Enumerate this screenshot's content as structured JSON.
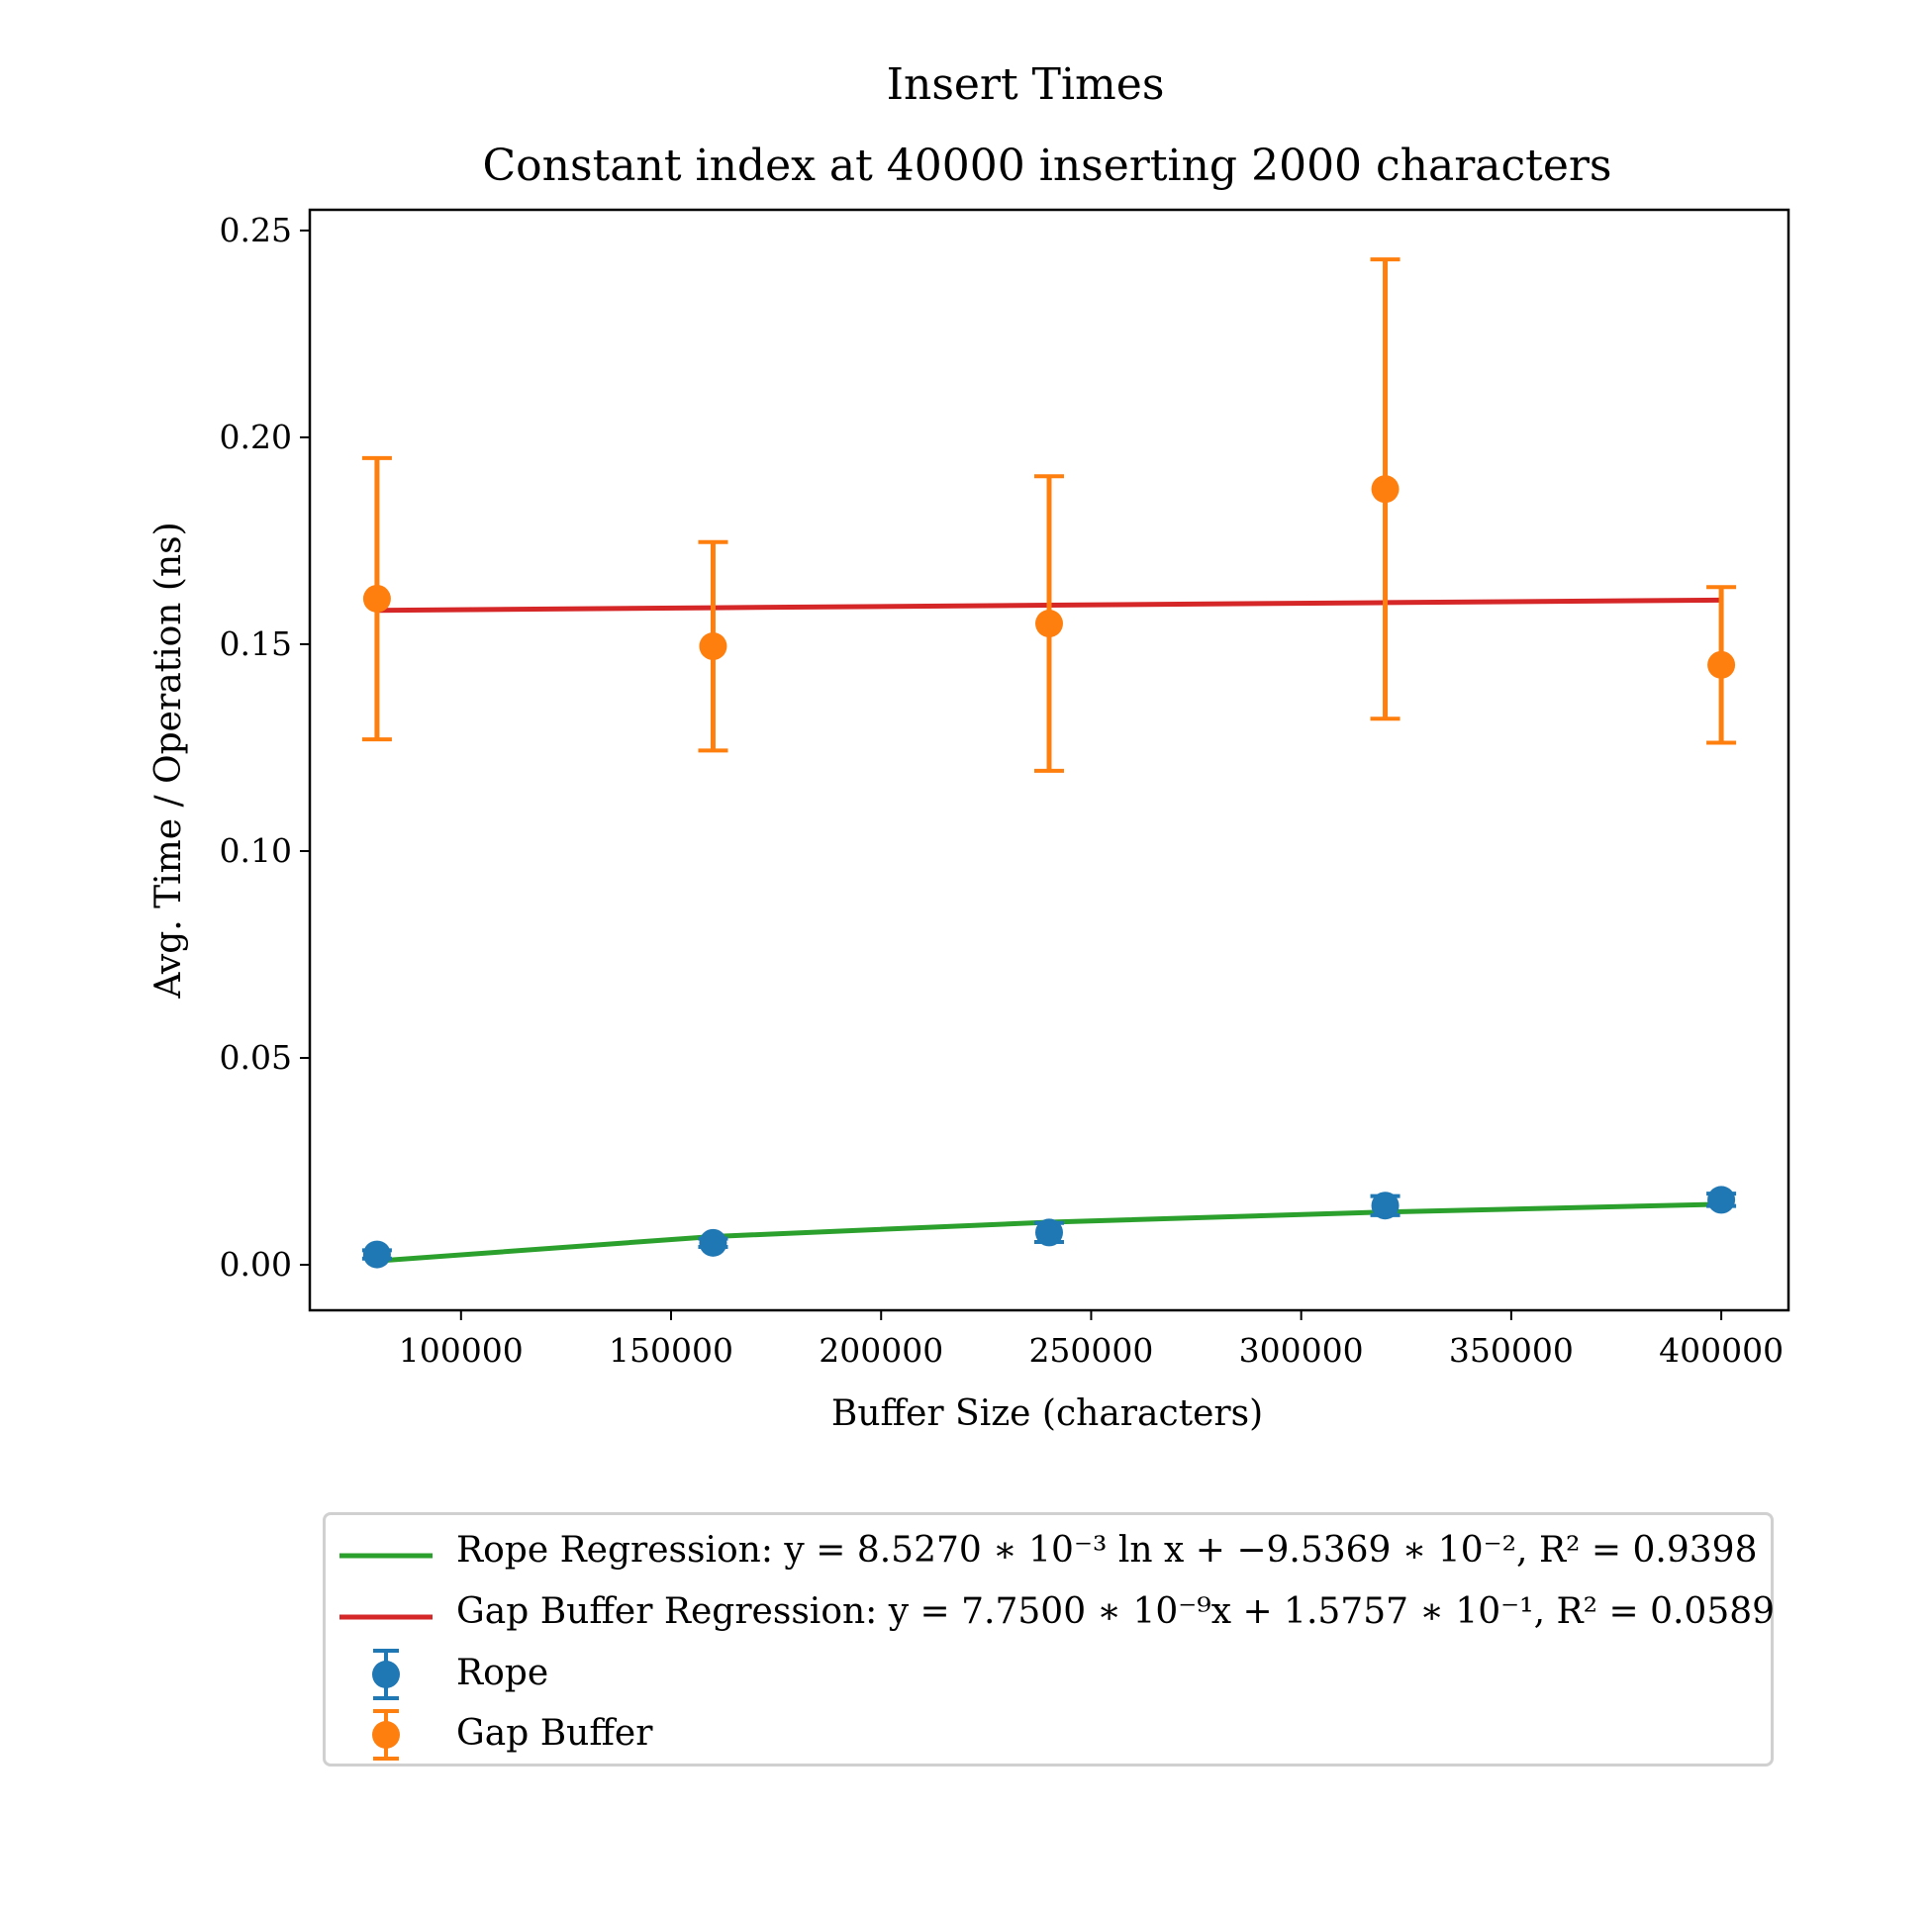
{
  "chart_data": {
    "type": "scatter",
    "title": "Insert Times",
    "subtitle": "Constant index at 40000 inserting 2000 characters",
    "xlabel": "Buffer Size (characters)",
    "ylabel": "Avg. Time / Operation (ns)",
    "xlim": [
      64000,
      416000
    ],
    "ylim": [
      -0.011,
      0.255
    ],
    "xticks": [
      100000,
      150000,
      200000,
      250000,
      300000,
      350000,
      400000
    ],
    "yticks": [
      0.0,
      0.05,
      0.1,
      0.15,
      0.2,
      0.25
    ],
    "ytick_labels": [
      "0.00",
      "0.05",
      "0.10",
      "0.15",
      "0.20",
      "0.25"
    ],
    "grid": false,
    "legend_position": "below plot",
    "series": [
      {
        "name": "Rope",
        "kind": "errorbar",
        "color": "#1f77b4",
        "x": [
          80000,
          160000,
          240000,
          320000,
          400000
        ],
        "y": [
          0.0025,
          0.0053,
          0.0078,
          0.0143,
          0.0157
        ],
        "yerr": [
          0.001,
          0.001,
          0.0023,
          0.0023,
          0.0015
        ]
      },
      {
        "name": "Gap Buffer",
        "kind": "errorbar",
        "color": "#ff7f0e",
        "x": [
          80000,
          160000,
          240000,
          320000,
          400000
        ],
        "y": [
          0.161,
          0.1495,
          0.155,
          0.1875,
          0.145
        ],
        "yerr": [
          0.034,
          0.0252,
          0.0356,
          0.0555,
          0.0188
        ]
      },
      {
        "name": "Rope Regression",
        "kind": "line",
        "color": "#2ca02c",
        "x": [
          80000,
          160000,
          240000,
          320000,
          400000
        ],
        "y": [
          0.00092,
          0.00683,
          0.01028,
          0.01274,
          0.01464
        ]
      },
      {
        "name": "Gap Buffer Regression",
        "kind": "line",
        "color": "#d62728",
        "x": [
          80000,
          160000,
          240000,
          320000,
          400000
        ],
        "y": [
          0.15819,
          0.15881,
          0.15943,
          0.16005,
          0.16067
        ]
      }
    ]
  },
  "legend": {
    "rope_regression": "Rope Regression: y = 8.5270 ∗ 10⁻³ ln x + −9.5369 ∗ 10⁻², R² = 0.9398",
    "gap_regression": "Gap Buffer Regression: y = 7.7500 ∗ 10⁻⁹x + 1.5757 ∗ 10⁻¹, R² = 0.0589",
    "rope": "Rope",
    "gap": "Gap Buffer"
  }
}
